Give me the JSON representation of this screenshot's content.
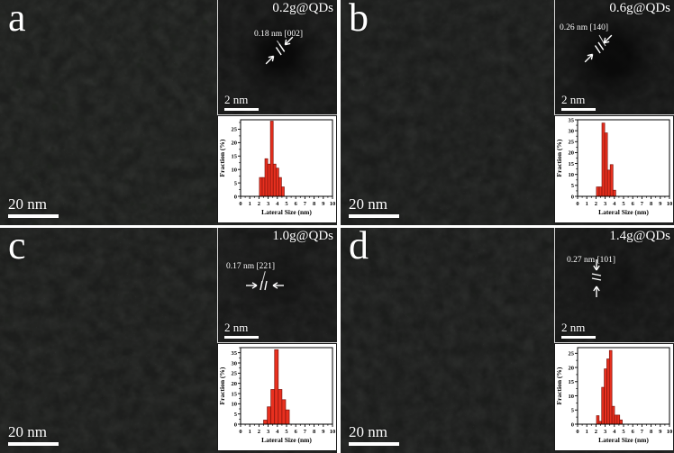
{
  "figure": {
    "panels": [
      {
        "letter": "a",
        "scale_bar_label": "20 nm",
        "inset": {
          "sample_label": "0.2g@QDs",
          "lattice_annotation": "0.18 nm [002]",
          "scale_bar_label": "2 nm"
        }
      },
      {
        "letter": "b",
        "scale_bar_label": "20 nm",
        "inset": {
          "sample_label": "0.6g@QDs",
          "lattice_annotation": "0.26 nm [140]",
          "scale_bar_label": "2 nm"
        }
      },
      {
        "letter": "c",
        "scale_bar_label": "20 nm",
        "inset": {
          "sample_label": "1.0g@QDs",
          "lattice_annotation": "0.17 nm [221]",
          "scale_bar_label": "2 nm"
        }
      },
      {
        "letter": "d",
        "scale_bar_label": "20 nm",
        "inset": {
          "sample_label": "1.4g@QDs",
          "lattice_annotation": "0.27 nm [101]",
          "scale_bar_label": "2 nm"
        }
      }
    ]
  },
  "chart_data": [
    {
      "panel": "a",
      "type": "bar",
      "title": "",
      "xlabel": "Lateral Size (nm)",
      "ylabel": "Fraction (%)",
      "xlim": [
        0,
        10
      ],
      "ylim": [
        0,
        28.5
      ],
      "xticks": [
        0,
        1,
        2,
        3,
        4,
        5,
        6,
        7,
        8,
        9,
        10
      ],
      "yticks": [
        0,
        5,
        10,
        15,
        20,
        25
      ],
      "bin_width": 0.3,
      "x": [
        2.2,
        2.5,
        2.8,
        3.1,
        3.4,
        3.7,
        4.0,
        4.3,
        4.6
      ],
      "values": [
        7,
        7,
        14,
        12,
        28,
        12,
        10.5,
        7,
        3.5
      ],
      "grid": false,
      "legend": false
    },
    {
      "panel": "b",
      "type": "bar",
      "title": "",
      "xlabel": "Lateral Size (nm)",
      "ylabel": "Fraction (%)",
      "xlim": [
        0,
        10
      ],
      "ylim": [
        0,
        35
      ],
      "xticks": [
        0,
        1,
        2,
        3,
        4,
        5,
        6,
        7,
        8,
        9,
        10
      ],
      "yticks": [
        0,
        5,
        10,
        15,
        20,
        25,
        30,
        35
      ],
      "bin_width": 0.3,
      "x": [
        2.2,
        2.5,
        2.8,
        3.1,
        3.4,
        3.7,
        4.0
      ],
      "values": [
        4.3,
        4.3,
        33.5,
        29,
        12,
        14.5,
        2.8
      ],
      "grid": false,
      "legend": false
    },
    {
      "panel": "c",
      "type": "bar",
      "title": "",
      "xlabel": "Lateral Size (nm)",
      "ylabel": "Fraction (%)",
      "xlim": [
        0,
        10
      ],
      "ylim": [
        0,
        37.5
      ],
      "xticks": [
        0,
        1,
        2,
        3,
        4,
        5,
        6,
        7,
        8,
        9,
        10
      ],
      "yticks": [
        0,
        5,
        10,
        15,
        20,
        25,
        30,
        35
      ],
      "bin_width": 0.4,
      "x": [
        2.7,
        3.1,
        3.5,
        3.9,
        4.3,
        4.7,
        5.1
      ],
      "values": [
        2,
        8.5,
        17,
        36.5,
        17,
        12,
        7
      ],
      "grid": false,
      "legend": false
    },
    {
      "panel": "d",
      "type": "bar",
      "title": "",
      "xlabel": "Lateral Size (nm)",
      "ylabel": "Fraction (%)",
      "xlim": [
        0,
        10
      ],
      "ylim": [
        0,
        27
      ],
      "xticks": [
        0,
        1,
        2,
        3,
        4,
        5,
        6,
        7,
        8,
        9,
        10
      ],
      "yticks": [
        0,
        5,
        10,
        15,
        20,
        25
      ],
      "bin_width": 0.28,
      "x": [
        2.2,
        2.48,
        2.76,
        3.04,
        3.32,
        3.6,
        3.88,
        4.16,
        4.44,
        4.72
      ],
      "values": [
        3,
        1,
        13,
        19.5,
        23,
        26,
        6.3,
        3.2,
        3.2,
        1.5
      ],
      "grid": false,
      "legend": false
    }
  ],
  "colors": {
    "bar_fill": "#e8301f",
    "bar_stroke": "#7e130c",
    "axis": "#000000",
    "scale_bar": "#ffffff",
    "overlay_text": "#ffffff"
  }
}
